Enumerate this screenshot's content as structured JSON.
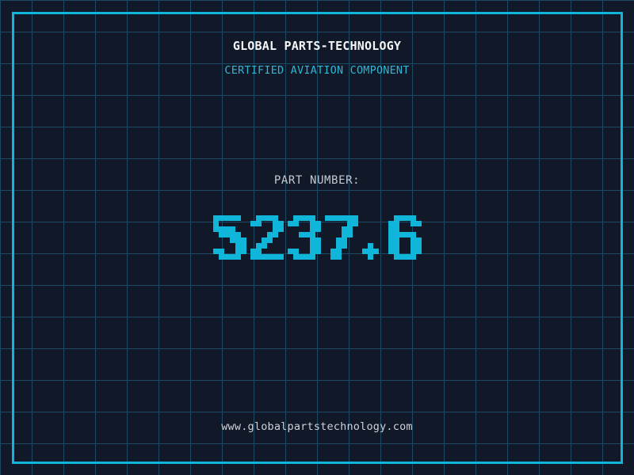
{
  "header": {
    "title": "GLOBAL PARTS-TECHNOLOGY",
    "subtitle": "CERTIFIED AVIATION COMPONENT"
  },
  "part": {
    "label": "PART NUMBER:",
    "value": "5237.6"
  },
  "footer": {
    "url": "www.globalpartstechnology.com"
  },
  "colors": {
    "background": "#111827",
    "grid_line": "#1c4963",
    "frame": "#0fb6d9",
    "accent": "#0fb6d9",
    "title_text": "#f4f6f8",
    "subtitle_text": "#2fb5d5",
    "label_text": "#c5cad3",
    "footer_text": "#cdd2da"
  }
}
